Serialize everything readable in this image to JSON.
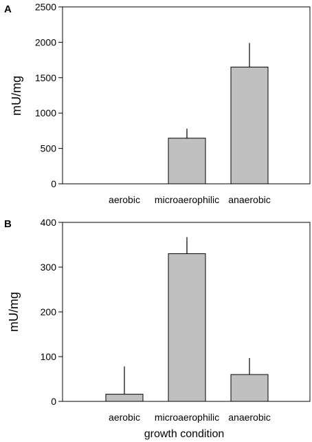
{
  "chart_data": [
    {
      "type": "bar",
      "panel_label": "A",
      "categories": [
        "aerobic",
        "microaerophilic",
        "anaerobic"
      ],
      "values": [
        0,
        645,
        1650
      ],
      "error_plus": [
        0,
        135,
        340
      ],
      "ylabel": "mU/mg",
      "xlabel": "",
      "ylim": [
        0,
        2500
      ],
      "yticks": [
        0,
        500,
        1000,
        1500,
        2000,
        2500
      ],
      "grid": false,
      "bar_color": "#c0c0c0"
    },
    {
      "type": "bar",
      "panel_label": "B",
      "categories": [
        "aerobic",
        "microaerophilic",
        "anaerobic"
      ],
      "values": [
        16,
        330,
        60
      ],
      "error_plus": [
        62,
        37,
        37
      ],
      "ylabel": "mU/mg",
      "xlabel": "growth condition",
      "ylim": [
        0,
        400
      ],
      "yticks": [
        0,
        100,
        200,
        300,
        400
      ],
      "grid": false,
      "bar_color": "#c0c0c0"
    }
  ]
}
